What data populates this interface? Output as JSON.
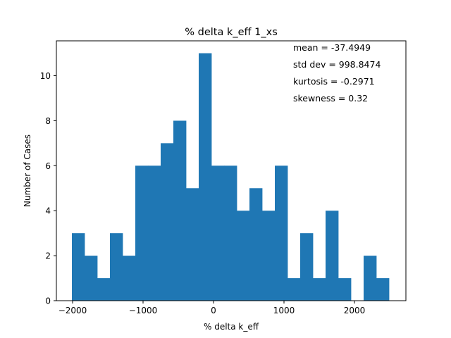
{
  "chart_data": {
    "type": "bar",
    "title": "% delta k_eff 1_xs",
    "xlabel": "% delta k_eff",
    "ylabel": "Number of Cases",
    "xlim": [
      -2230,
      2730
    ],
    "ylim": [
      0,
      11.55
    ],
    "xticks": [
      -2000,
      -1000,
      0,
      1000,
      2000
    ],
    "xtick_labels": [
      "−2000",
      "−1000",
      "0",
      "1000",
      "2000"
    ],
    "yticks": [
      0,
      2,
      4,
      6,
      8,
      10
    ],
    "ytick_labels": [
      "0",
      "2",
      "4",
      "6",
      "8",
      "10"
    ],
    "bin_start": -2010,
    "bin_width": 180,
    "values": [
      3,
      2,
      1,
      3,
      2,
      6,
      6,
      7,
      8,
      5,
      11,
      6,
      6,
      4,
      5,
      4,
      6,
      1,
      3,
      1,
      4,
      1,
      0,
      2,
      1
    ],
    "bar_color": "#1f77b4",
    "grid": false,
    "annotations": [
      "mean = -37.4949",
      "std dev = 998.8474",
      "kurtosis = -0.2971",
      "skewness = 0.32"
    ]
  }
}
